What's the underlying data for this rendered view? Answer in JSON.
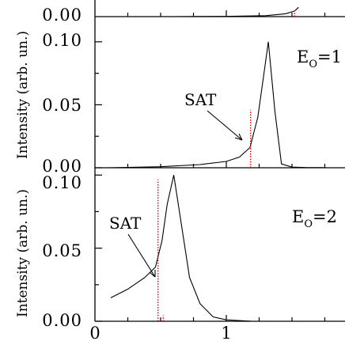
{
  "chart_data": [
    {
      "type": "line",
      "panel": "top (partial)",
      "ylabel": "",
      "ytick_labels": [
        "0.00"
      ],
      "ylim": [
        0.0,
        0.12
      ],
      "xlim": [
        0.0,
        1.8
      ],
      "series": [
        {
          "style": "solid black",
          "x": [
            0.6,
            1.0,
            1.3,
            1.45,
            1.52,
            1.55
          ],
          "y": [
            0.0,
            0.0005,
            0.002,
            0.006,
            0.012,
            0.02
          ]
        },
        {
          "style": "dotted red",
          "x": [
            1.52,
            1.52
          ],
          "y": [
            0.0,
            0.012
          ]
        }
      ]
    },
    {
      "type": "line",
      "panel": "middle",
      "ylabel": "Intensity (arb. un.)",
      "ytick_labels": [
        "0.00",
        "0.05",
        "0.10"
      ],
      "yticks": [
        0.0,
        0.05,
        0.1
      ],
      "ylim": [
        0.0,
        0.12
      ],
      "xlim": [
        0.0,
        1.8
      ],
      "annotation": {
        "text": "SAT",
        "arrow_to_x": 1.18,
        "arrow_to_y": 0.016
      },
      "label_parts": {
        "main": "E",
        "sub": "O",
        "rest": "=1"
      },
      "series": [
        {
          "style": "solid black",
          "x": [
            0.1,
            0.5,
            0.8,
            1.0,
            1.1,
            1.18,
            1.24,
            1.28,
            1.32,
            1.37,
            1.42,
            1.5,
            1.6,
            1.75
          ],
          "y": [
            0.0,
            0.0008,
            0.0025,
            0.005,
            0.0085,
            0.016,
            0.04,
            0.07,
            0.1,
            0.045,
            0.003,
            0.0005,
            0.0002,
            0.0001
          ]
        },
        {
          "style": "dotted red",
          "x": [
            1.185,
            1.185
          ],
          "y": [
            0.0,
            0.046
          ]
        }
      ]
    },
    {
      "type": "line",
      "panel": "bottom",
      "ylabel": "Intensity (arb. un.)",
      "ytick_labels": [
        "0.00",
        "0.05",
        "0.10"
      ],
      "yticks": [
        0.0,
        0.05,
        0.1
      ],
      "ylim": [
        0.0,
        0.105
      ],
      "xlim": [
        0.0,
        1.8
      ],
      "xticks": [
        0,
        1
      ],
      "xtick_labels": [
        "0",
        "1"
      ],
      "annotation": {
        "text": "SAT",
        "arrow_to_x": 0.5,
        "arrow_to_y": 0.037
      },
      "label_parts": {
        "main": "E",
        "sub": "O",
        "rest": "=2"
      },
      "series": [
        {
          "style": "solid black",
          "x": [
            0.12,
            0.25,
            0.38,
            0.46,
            0.51,
            0.55,
            0.6,
            0.66,
            0.72,
            0.8,
            0.9,
            1.0,
            1.2
          ],
          "y": [
            0.016,
            0.022,
            0.03,
            0.037,
            0.055,
            0.08,
            0.1,
            0.065,
            0.03,
            0.012,
            0.003,
            0.001,
            0.0
          ]
        },
        {
          "style": "dotted red",
          "x": [
            0.48,
            0.48
          ],
          "y": [
            0.0,
            0.097
          ]
        },
        {
          "style": "dotted red",
          "x": [
            0.52,
            0.52
          ],
          "y": [
            0.0,
            0.004
          ]
        }
      ]
    }
  ]
}
